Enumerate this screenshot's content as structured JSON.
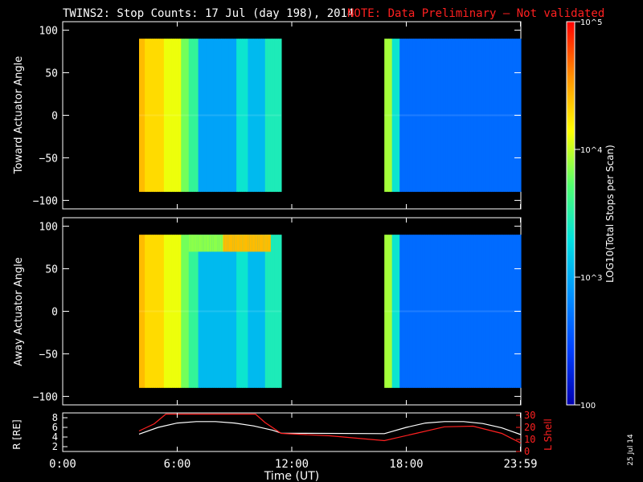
{
  "title": "TWINS2: Stop Counts: 17 Jul (day 198), 2014",
  "note": "NOTE: Data Preliminary — Not validated",
  "note_color": "#ff2020",
  "stamp": "25 Jul 14",
  "colorbar": {
    "label": "LOG10(Total Stops per Scan)",
    "ticks": [
      "10^5",
      "10^4",
      "10^3",
      "100"
    ],
    "scale": "log",
    "range": [
      100,
      100000
    ],
    "colormap": [
      "#0000b0",
      "#0040ff",
      "#0090ff",
      "#00e0e0",
      "#50ff70",
      "#ffff00",
      "#ff9000",
      "#ff0000"
    ]
  },
  "chart_data": [
    {
      "type": "heatmap",
      "ylabel": "Toward Actuator Angle",
      "ylim": [
        -110,
        110
      ],
      "yticks": [
        "100",
        "50",
        "0",
        "−50",
        "−100"
      ],
      "xlim": [
        0,
        24
      ],
      "data_gaps_hours": [
        [
          0,
          4.0
        ],
        [
          11.45,
          16.85
        ]
      ]
    },
    {
      "type": "heatmap",
      "ylabel": "Away Actuator Angle",
      "ylim": [
        -110,
        110
      ],
      "yticks": [
        "100",
        "50",
        "0",
        "−50",
        "−100"
      ],
      "xlim": [
        0,
        24
      ],
      "data_gaps_hours": [
        [
          0,
          4.0
        ],
        [
          11.45,
          16.85
        ]
      ]
    },
    {
      "type": "line",
      "ylabel": "R [RE]",
      "y2label": "L Shell",
      "yticks": [
        "8",
        "6",
        "4",
        "2"
      ],
      "y2ticks": [
        "30",
        "20",
        "10",
        "0"
      ],
      "xlabel": "Time (UT)",
      "xticks": [
        "0:00",
        "6:00",
        "12:00",
        "18:00",
        "23:59"
      ],
      "series": [
        {
          "name": "R [RE]",
          "color": "#ffffff",
          "axis": "left",
          "x": [
            4.0,
            5.0,
            6.0,
            7.0,
            8.0,
            9.0,
            10.0,
            11.0,
            11.45,
            16.85,
            18.0,
            19.0,
            20.0,
            21.0,
            22.0,
            23.0,
            24.0
          ],
          "y": [
            4.6,
            6.0,
            6.9,
            7.2,
            7.2,
            6.9,
            6.3,
            5.4,
            4.8,
            4.7,
            6.0,
            6.9,
            7.2,
            7.2,
            6.8,
            5.9,
            4.5
          ]
        },
        {
          "name": "L Shell",
          "color": "#ff2020",
          "axis": "right",
          "x": [
            4.0,
            4.8,
            5.4,
            10.1,
            10.6,
            11.45,
            14.0,
            16.85,
            18.5,
            20.0,
            21.5,
            23.0,
            24.0
          ],
          "y": [
            17,
            23,
            31,
            31,
            24,
            15.0,
            13.0,
            9.0,
            15.0,
            20.5,
            21.0,
            15.0,
            7.0
          ]
        }
      ]
    }
  ]
}
